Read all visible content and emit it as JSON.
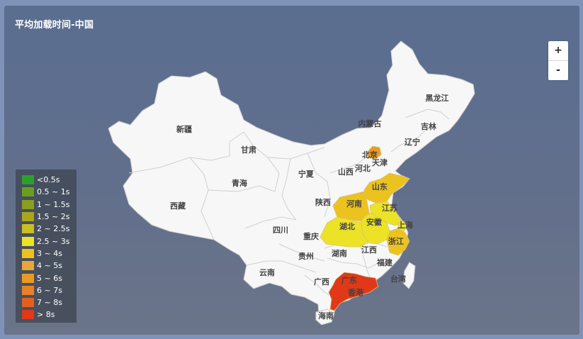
{
  "title": "平均加载时间-中国",
  "zoom": {
    "in_label": "+",
    "out_label": "-"
  },
  "colors": {
    "land": "#f7f7f7",
    "border": "#c9c9c9"
  },
  "legend": [
    {
      "label": "<0.5s",
      "color": "#2ca02c"
    },
    {
      "label": "0.5 ~ 1s",
      "color": "#6a9e1f"
    },
    {
      "label": "1 ~ 1.5s",
      "color": "#8a9f1e"
    },
    {
      "label": "1.5 ~ 2s",
      "color": "#aaa51c"
    },
    {
      "label": "2 ~ 2.5s",
      "color": "#c9bf20"
    },
    {
      "label": "2.5 ~ 3s",
      "color": "#ece326"
    },
    {
      "label": "3 ~ 4s",
      "color": "#ecc21f"
    },
    {
      "label": "4 ~ 5s",
      "color": "#eaa63a"
    },
    {
      "label": "5 ~ 6s",
      "color": "#ea9a22"
    },
    {
      "label": "6 ~ 7s",
      "color": "#e88226"
    },
    {
      "label": "7 ~ 8s",
      "color": "#e35f20"
    },
    {
      "label": "> 8s",
      "color": "#e03818"
    }
  ],
  "provinces": [
    {
      "name": "新疆",
      "range": null
    },
    {
      "name": "西藏",
      "range": null
    },
    {
      "name": "青海",
      "range": null
    },
    {
      "name": "甘肃",
      "range": null
    },
    {
      "name": "内蒙古",
      "range": null
    },
    {
      "name": "黑龙江",
      "range": null
    },
    {
      "name": "吉林",
      "range": null
    },
    {
      "name": "辽宁",
      "range": null
    },
    {
      "name": "北京",
      "range": "5 ~ 6s"
    },
    {
      "name": "天津",
      "range": null
    },
    {
      "name": "河北",
      "range": null
    },
    {
      "name": "山西",
      "range": null
    },
    {
      "name": "宁夏",
      "range": null
    },
    {
      "name": "陕西",
      "range": null
    },
    {
      "name": "山东",
      "range": "3 ~ 4s"
    },
    {
      "name": "河南",
      "range": "3 ~ 4s"
    },
    {
      "name": "江苏",
      "range": "2.5 ~ 3s"
    },
    {
      "name": "安徽",
      "range": "2.5 ~ 3s"
    },
    {
      "name": "湖北",
      "range": "2.5 ~ 3s"
    },
    {
      "name": "上海",
      "range": "2.5 ~ 3s"
    },
    {
      "name": "浙江",
      "range": "3 ~ 4s"
    },
    {
      "name": "四川",
      "range": null
    },
    {
      "name": "重庆",
      "range": null
    },
    {
      "name": "贵州",
      "range": null
    },
    {
      "name": "湖南",
      "range": null
    },
    {
      "name": "江西",
      "range": null
    },
    {
      "name": "福建",
      "range": null
    },
    {
      "name": "台湾",
      "range": null
    },
    {
      "name": "云南",
      "range": null
    },
    {
      "name": "广西",
      "range": null
    },
    {
      "name": "广东",
      "range": "> 8s"
    },
    {
      "name": "香港",
      "range": null
    },
    {
      "name": "海南",
      "range": null
    }
  ]
}
